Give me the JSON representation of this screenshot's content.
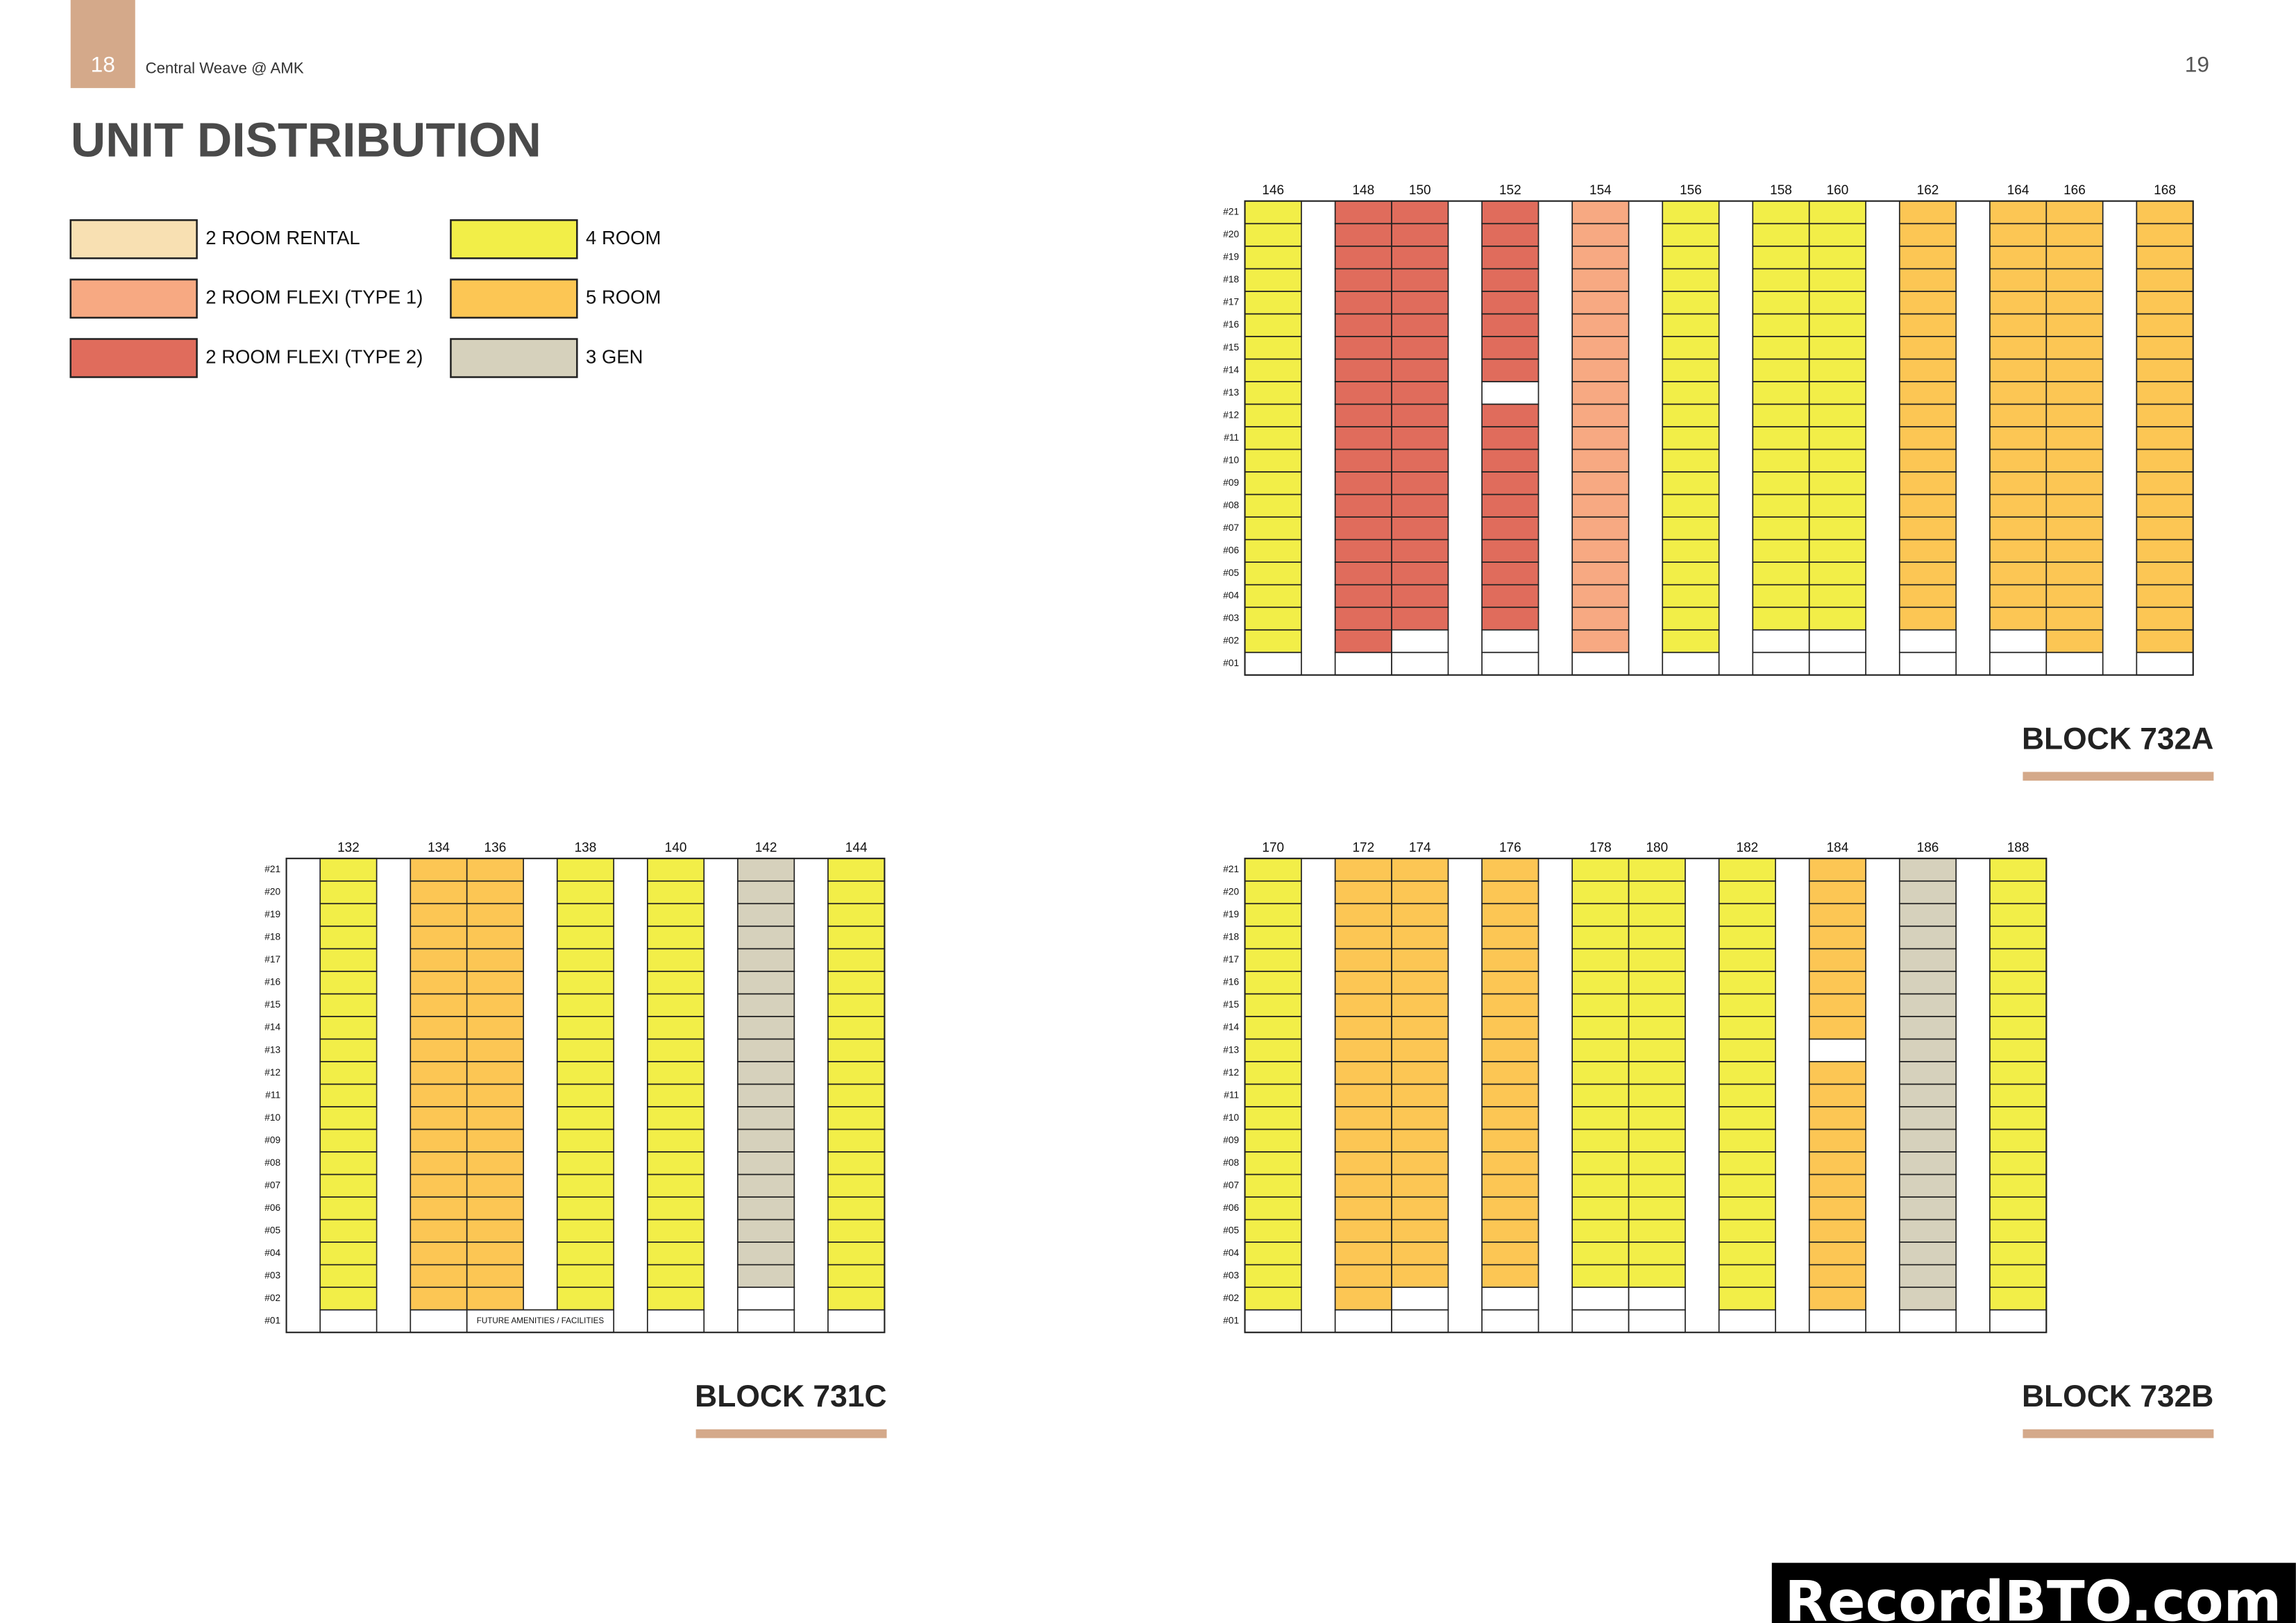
{
  "header": {
    "page_left": "18",
    "project": "Central Weave @ AMK",
    "page_right": "19"
  },
  "title": "UNIT DISTRIBUTION",
  "legend": [
    {
      "label": "2 ROOM RENTAL",
      "color": "#f8e0b2"
    },
    {
      "label": "2 ROOM FLEXI (TYPE 1)",
      "color": "#f7a982"
    },
    {
      "label": "2 ROOM FLEXI (TYPE 2)",
      "color": "#e06c5c"
    },
    {
      "label": "4 ROOM",
      "color": "#f2ee48"
    },
    {
      "label": "5 ROOM",
      "color": "#fcc654"
    },
    {
      "label": "3 GEN",
      "color": "#d6d1bc"
    }
  ],
  "blocks": [
    {
      "name": "BLOCK 732A",
      "floors": [
        "#01",
        "#02",
        "#03",
        "#04",
        "#05",
        "#06",
        "#07",
        "#08",
        "#09",
        "#10",
        "#11",
        "#12",
        "#13",
        "#14",
        "#15",
        "#16",
        "#17",
        "#18",
        "#19",
        "#20",
        "#21"
      ],
      "stacks": [
        {
          "stack": "146",
          "type": "4 ROOM",
          "vacant": [
            "#01"
          ]
        },
        {
          "stack": "148",
          "type": "2 ROOM FLEXI (TYPE 2)",
          "vacant": [
            "#01"
          ]
        },
        {
          "stack": "150",
          "type": "2 ROOM FLEXI (TYPE 2)",
          "vacant": [
            "#01",
            "#02"
          ]
        },
        {
          "stack": "152",
          "type": "2 ROOM FLEXI (TYPE 2)",
          "vacant": [
            "#01",
            "#02",
            "#13"
          ]
        },
        {
          "stack": "154",
          "type": "2 ROOM FLEXI (TYPE 1)",
          "vacant": [
            "#01"
          ]
        },
        {
          "stack": "156",
          "type": "4 ROOM",
          "vacant": [
            "#01"
          ]
        },
        {
          "stack": "158",
          "type": "4 ROOM",
          "vacant": [
            "#01",
            "#02"
          ]
        },
        {
          "stack": "160",
          "type": "4 ROOM",
          "vacant": [
            "#01",
            "#02"
          ]
        },
        {
          "stack": "162",
          "type": "5 ROOM",
          "vacant": [
            "#01",
            "#02"
          ]
        },
        {
          "stack": "164",
          "type": "5 ROOM",
          "vacant": [
            "#01",
            "#02"
          ]
        },
        {
          "stack": "166",
          "type": "5 ROOM",
          "vacant": [
            "#01"
          ]
        },
        {
          "stack": "168",
          "type": "5 ROOM",
          "vacant": [
            "#01"
          ]
        }
      ]
    },
    {
      "name": "BLOCK 731C",
      "floors": [
        "#01",
        "#02",
        "#03",
        "#04",
        "#05",
        "#06",
        "#07",
        "#08",
        "#09",
        "#10",
        "#11",
        "#12",
        "#13",
        "#14",
        "#15",
        "#16",
        "#17",
        "#18",
        "#19",
        "#20",
        "#21"
      ],
      "stacks": [
        {
          "stack": "132",
          "type": "4 ROOM",
          "vacant": [
            "#01"
          ]
        },
        {
          "stack": "134",
          "type": "5 ROOM",
          "vacant": [
            "#01"
          ]
        },
        {
          "stack": "136",
          "type": "5 ROOM",
          "vacant": [
            "#01"
          ]
        },
        {
          "stack": "138",
          "type": "4 ROOM",
          "vacant": [
            "#01"
          ]
        },
        {
          "stack": "140",
          "type": "4 ROOM",
          "vacant": [
            "#01"
          ]
        },
        {
          "stack": "142",
          "type": "3 GEN",
          "vacant": [
            "#01",
            "#02"
          ]
        },
        {
          "stack": "144",
          "type": "4 ROOM",
          "vacant": [
            "#01"
          ]
        }
      ],
      "amenities": {
        "label": "FUTURE AMENITIES / FACILITIES",
        "from_stack": "136",
        "to_stack": "138",
        "floor": "#01"
      }
    },
    {
      "name": "BLOCK 732B",
      "floors": [
        "#01",
        "#02",
        "#03",
        "#04",
        "#05",
        "#06",
        "#07",
        "#08",
        "#09",
        "#10",
        "#11",
        "#12",
        "#13",
        "#14",
        "#15",
        "#16",
        "#17",
        "#18",
        "#19",
        "#20",
        "#21"
      ],
      "stacks": [
        {
          "stack": "170",
          "type": "4 ROOM",
          "vacant": [
            "#01"
          ]
        },
        {
          "stack": "172",
          "type": "5 ROOM",
          "vacant": [
            "#01"
          ]
        },
        {
          "stack": "174",
          "type": "5 ROOM",
          "vacant": [
            "#01",
            "#02"
          ]
        },
        {
          "stack": "176",
          "type": "5 ROOM",
          "vacant": [
            "#01",
            "#02"
          ]
        },
        {
          "stack": "178",
          "type": "4 ROOM",
          "vacant": [
            "#01",
            "#02"
          ]
        },
        {
          "stack": "180",
          "type": "4 ROOM",
          "vacant": [
            "#01",
            "#02"
          ]
        },
        {
          "stack": "182",
          "type": "4 ROOM",
          "vacant": [
            "#01"
          ]
        },
        {
          "stack": "184",
          "type": "5 ROOM",
          "vacant": [
            "#01",
            "#13"
          ]
        },
        {
          "stack": "186",
          "type": "3 GEN",
          "vacant": [
            "#01"
          ]
        },
        {
          "stack": "188",
          "type": "4 ROOM",
          "vacant": [
            "#01"
          ]
        }
      ]
    }
  ],
  "watermark": "RecordBTO.com"
}
